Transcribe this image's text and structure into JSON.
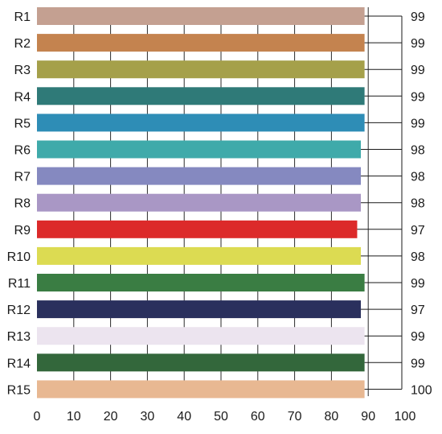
{
  "chart_data": {
    "type": "bar",
    "orientation": "horizontal",
    "title": "",
    "xlabel": "",
    "ylabel": "",
    "xlim": [
      0,
      100
    ],
    "x_ticks": [
      "0",
      "10",
      "20",
      "30",
      "40",
      "50",
      "60",
      "70",
      "80",
      "90",
      "100"
    ],
    "grid": "vertical",
    "categories": [
      "R1",
      "R2",
      "R3",
      "R4",
      "R5",
      "R6",
      "R7",
      "R8",
      "R9",
      "R10",
      "R11",
      "R12",
      "R13",
      "R14",
      "R15"
    ],
    "values": [
      89,
      89,
      89,
      89,
      89,
      88,
      88,
      88,
      87,
      88,
      89,
      88,
      89,
      89,
      89
    ],
    "data_labels": [
      "99",
      "99",
      "99",
      "99",
      "99",
      "98",
      "98",
      "98",
      "97",
      "98",
      "99",
      "97",
      "99",
      "99",
      "100"
    ],
    "colors": [
      "#c4a091",
      "#c4834f",
      "#a5a04a",
      "#2f7a78",
      "#2e8db6",
      "#3faaaa",
      "#8589c0",
      "#a997c5",
      "#dc2a2a",
      "#dcdb52",
      "#3a7d43",
      "#2a305d",
      "#ece4ef",
      "#33673b",
      "#e8b892"
    ]
  }
}
